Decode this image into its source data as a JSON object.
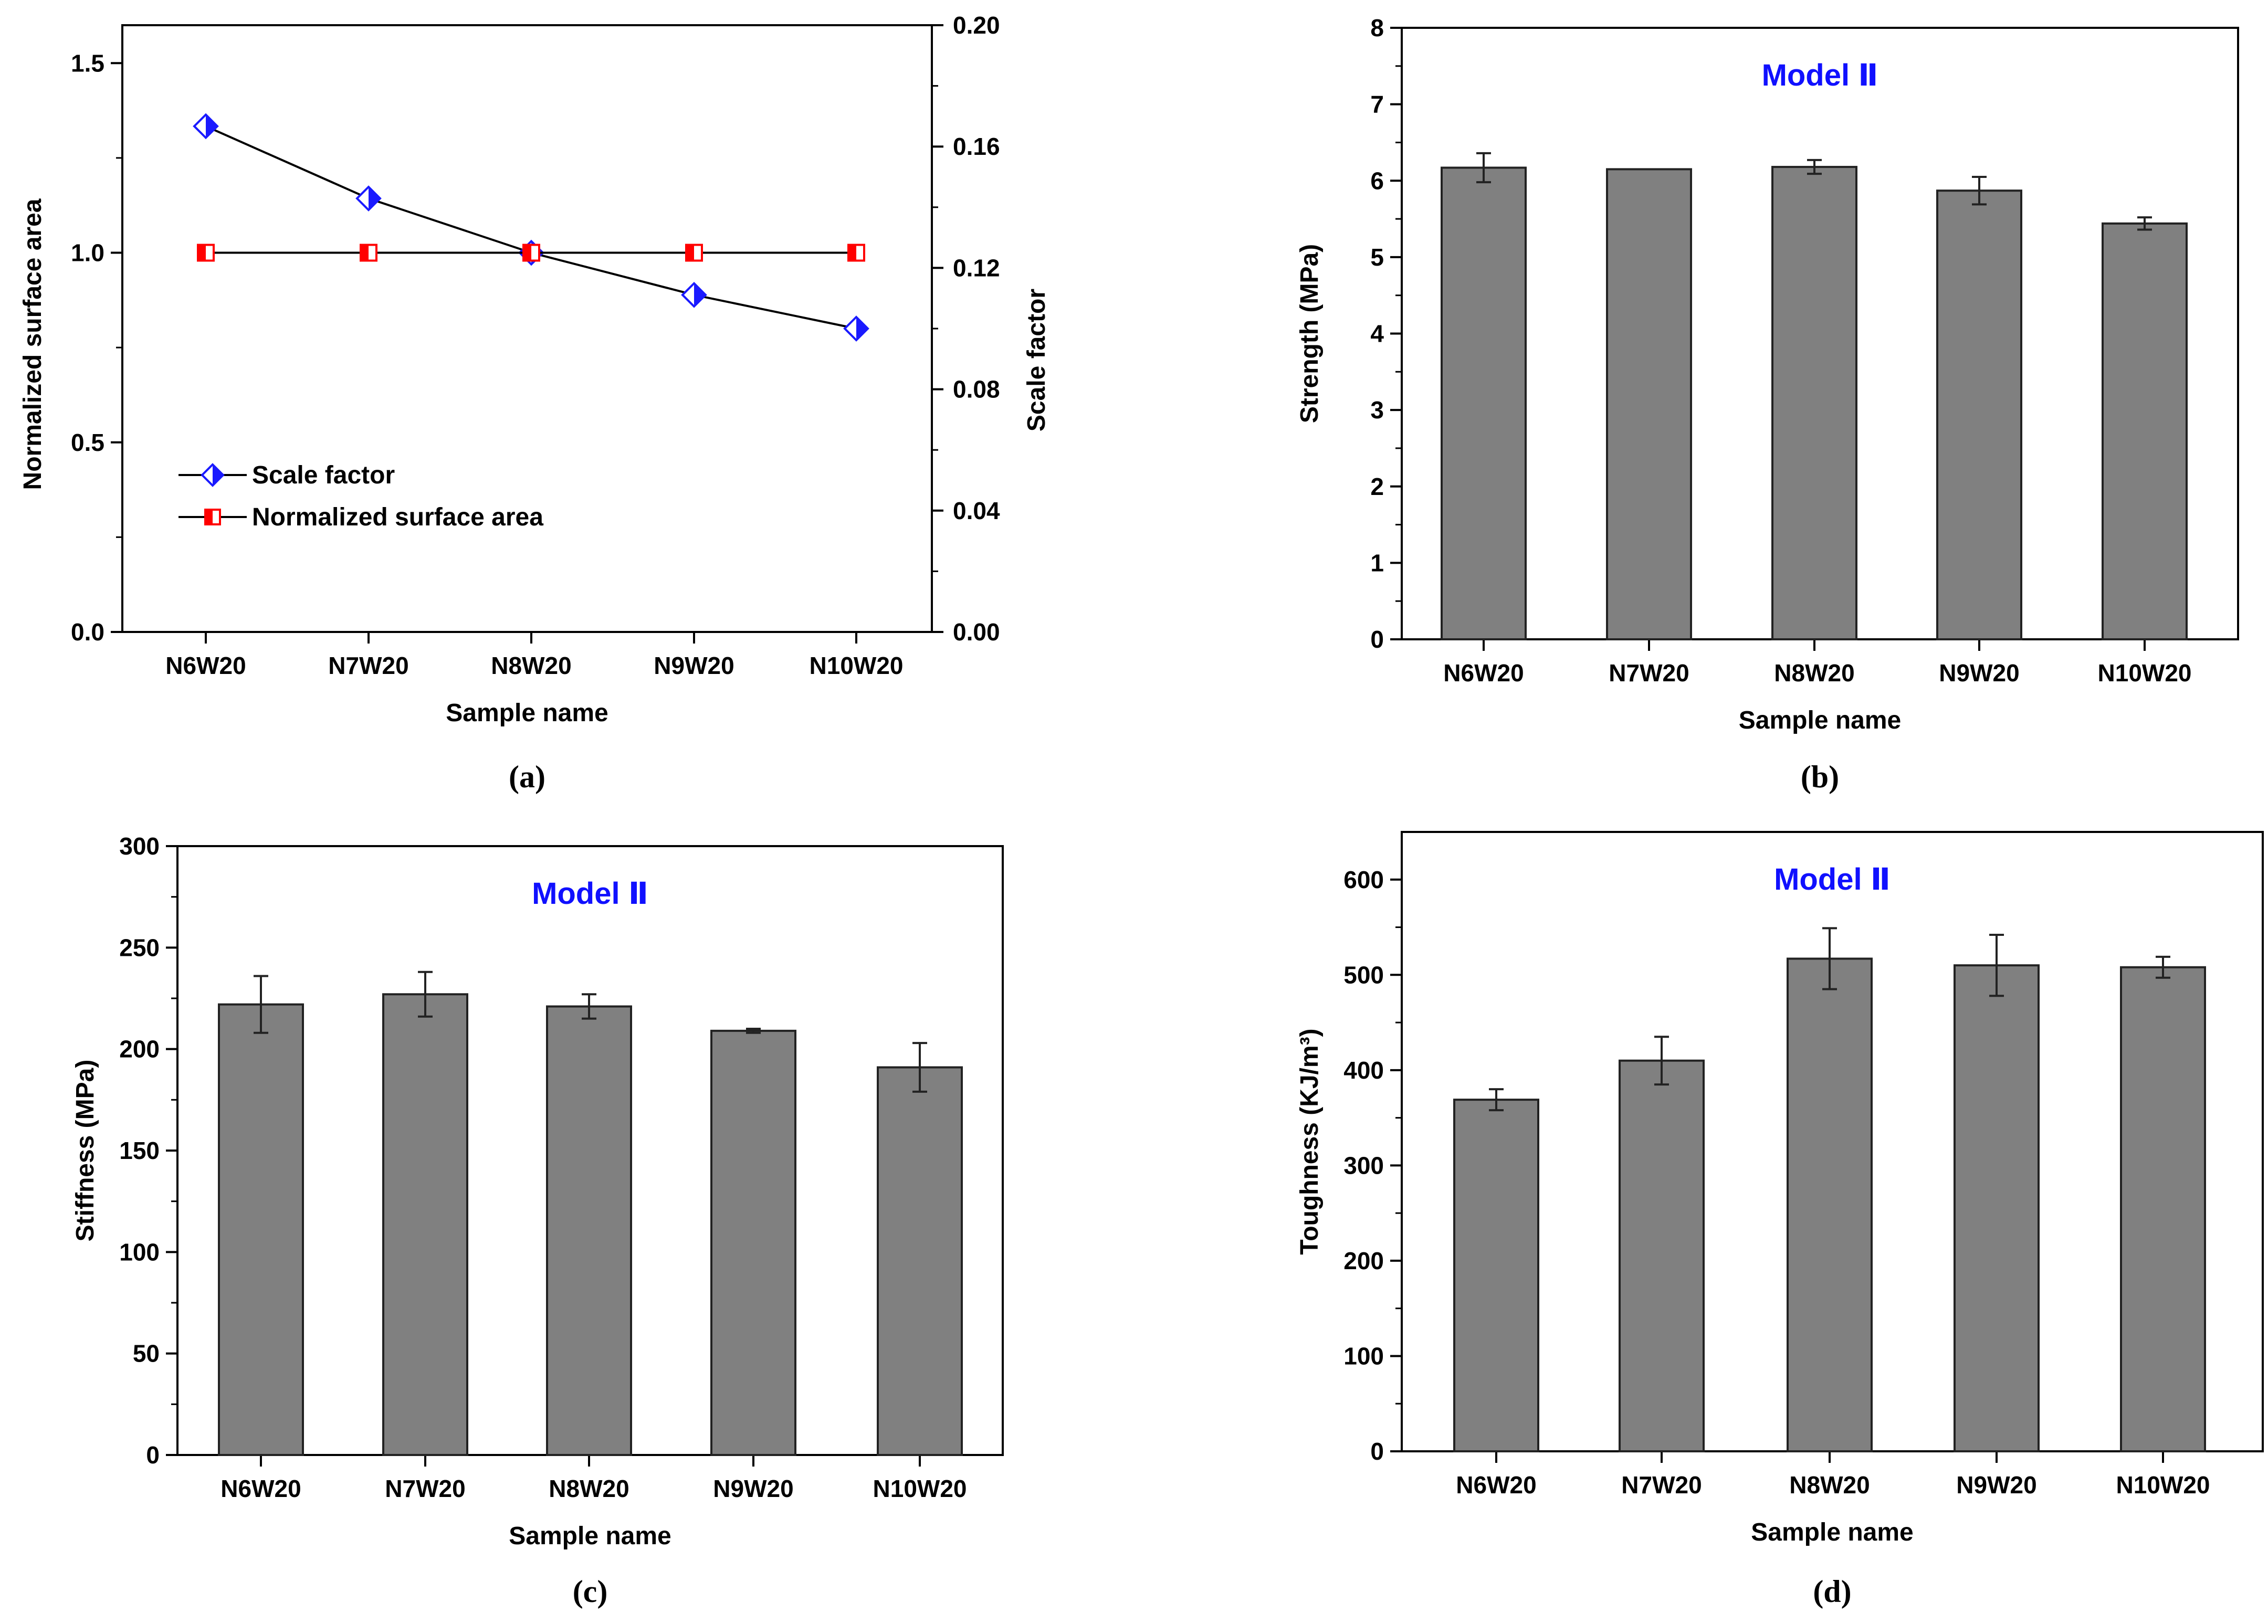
{
  "chart_data": [
    {
      "panel": "(a)",
      "type": "line",
      "categories": [
        "N6W20",
        "N7W20",
        "N8W20",
        "N9W20",
        "N10W20"
      ],
      "xlabel": "Sample name",
      "ylabel": "Normalized surface area",
      "ylabel_right": "Scale factor",
      "ylim": [
        0,
        1.6
      ],
      "yticks": [
        "0.0",
        "0.5",
        "1.0",
        "1.5"
      ],
      "ylim_right": [
        0,
        0.2
      ],
      "yticks_right": [
        "0.00",
        "0.04",
        "0.08",
        "0.12",
        "0.16",
        "0.20"
      ],
      "series": [
        {
          "name": "Scale factor",
          "axis": "right",
          "values": [
            0.1667,
            0.1429,
            0.125,
            0.1111,
            0.1
          ],
          "color": "#1a1aff",
          "marker": "diamond"
        },
        {
          "name": "Normalized surface area",
          "axis": "left",
          "values": [
            1.0,
            1.0,
            1.0,
            1.0,
            1.0
          ],
          "color": "#ff0000",
          "marker": "square"
        }
      ],
      "legend": "bottom-left"
    },
    {
      "panel": "(b)",
      "type": "bar",
      "title": "Model Ⅱ",
      "categories": [
        "N6W20",
        "N7W20",
        "N8W20",
        "N9W20",
        "N10W20"
      ],
      "values": [
        6.17,
        6.15,
        6.18,
        5.87,
        5.44
      ],
      "errors": [
        0.19,
        0.0,
        0.09,
        0.18,
        0.08
      ],
      "xlabel": "Sample name",
      "ylabel": "Strength (MPa)",
      "ylim": [
        0,
        8
      ],
      "yticks": [
        "0",
        "1",
        "2",
        "3",
        "4",
        "5",
        "6",
        "7",
        "8"
      ]
    },
    {
      "panel": "(c)",
      "type": "bar",
      "title": "Model Ⅱ",
      "categories": [
        "N6W20",
        "N7W20",
        "N8W20",
        "N9W20",
        "N10W20"
      ],
      "values": [
        222,
        227,
        221,
        209,
        191
      ],
      "errors": [
        14,
        11,
        6,
        1,
        12
      ],
      "xlabel": "Sample name",
      "ylabel": "Stiffness (MPa)",
      "ylim": [
        0,
        300
      ],
      "yticks": [
        "0",
        "50",
        "100",
        "150",
        "200",
        "250",
        "300"
      ]
    },
    {
      "panel": "(d)",
      "type": "bar",
      "title": "Model Ⅱ",
      "categories": [
        "N6W20",
        "N7W20",
        "N8W20",
        "N9W20",
        "N10W20"
      ],
      "values": [
        369,
        410,
        517,
        510,
        508
      ],
      "errors": [
        11,
        25,
        32,
        32,
        11
      ],
      "xlabel": "Sample name",
      "ylabel": "Toughness (KJ/m³)",
      "ylim": [
        0,
        650
      ],
      "yticks": [
        "0",
        "100",
        "200",
        "300",
        "400",
        "500",
        "600"
      ]
    }
  ],
  "colors": {
    "bar_fill": "#808080",
    "bar_stroke": "#222222",
    "title_blue": "#1010ff"
  }
}
